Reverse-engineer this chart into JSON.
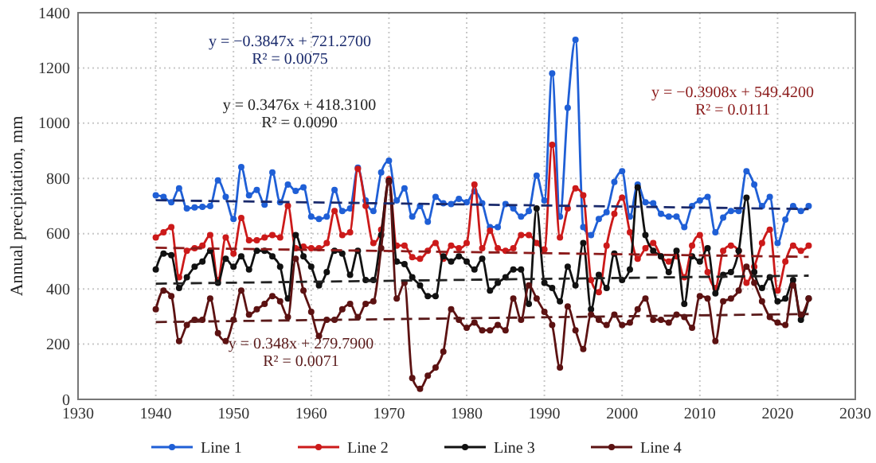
{
  "chart_data": {
    "type": "line",
    "ylabel": "Annual precipitation, mm",
    "xlim": [
      1930,
      2030
    ],
    "xticks": [
      1930,
      1940,
      1950,
      1960,
      1970,
      1980,
      1990,
      2000,
      2010,
      2020,
      2030
    ],
    "ylim": [
      0,
      1400
    ],
    "yticks": [
      0,
      200,
      400,
      600,
      800,
      1000,
      1200,
      1400
    ],
    "grid": true,
    "legend": "bottom",
    "marker": "circle",
    "x": [
      1940,
      1941,
      1942,
      1943,
      1944,
      1945,
      1946,
      1947,
      1948,
      1949,
      1950,
      1951,
      1952,
      1953,
      1954,
      1955,
      1956,
      1957,
      1958,
      1959,
      1960,
      1961,
      1962,
      1963,
      1964,
      1965,
      1966,
      1967,
      1968,
      1969,
      1970,
      1971,
      1972,
      1973,
      1974,
      1975,
      1976,
      1977,
      1978,
      1979,
      1980,
      1981,
      1982,
      1983,
      1984,
      1985,
      1986,
      1987,
      1988,
      1989,
      1990,
      1991,
      1992,
      1993,
      1994,
      1995,
      1996,
      1997,
      1998,
      1999,
      2000,
      2001,
      2002,
      2003,
      2004,
      2005,
      2006,
      2007,
      2008,
      2009,
      2010,
      2011,
      2012,
      2013,
      2014,
      2015,
      2016,
      2017,
      2018,
      2019,
      2020,
      2021,
      2022,
      2023,
      2024
    ],
    "series": [
      {
        "name": "Line 1",
        "color": "#1f5fd6",
        "values": [
          739,
          733,
          714,
          764,
          691,
          695,
          697,
          700,
          793,
          733,
          653,
          841,
          739,
          758,
          705,
          822,
          714,
          778,
          755,
          768,
          662,
          653,
          662,
          758,
          682,
          691,
          839,
          720,
          682,
          822,
          864,
          720,
          764,
          662,
          700,
          643,
          733,
          710,
          707,
          726,
          714,
          753,
          710,
          624,
          624,
          707,
          691,
          662,
          682,
          810,
          720,
          1180,
          662,
          1056,
          1302,
          624,
          595,
          653,
          678,
          787,
          826,
          662,
          778,
          714,
          710,
          672,
          662,
          662,
          624,
          700,
          720,
          733,
          605,
          658,
          682,
          682,
          826,
          778,
          700,
          733,
          566,
          651,
          700,
          682,
          700
        ]
      },
      {
        "name": "Line 2",
        "color": "#cc1a1a",
        "values": [
          586,
          605,
          624,
          442,
          538,
          547,
          557,
          595,
          432,
          586,
          528,
          657,
          576,
          576,
          586,
          595,
          586,
          701,
          547,
          553,
          547,
          547,
          566,
          682,
          595,
          605,
          835,
          701,
          566,
          614,
          797,
          557,
          557,
          515,
          509,
          538,
          566,
          509,
          557,
          547,
          566,
          778,
          547,
          611,
          547,
          538,
          547,
          595,
          595,
          566,
          543,
          922,
          586,
          691,
          764,
          739,
          432,
          388,
          557,
          672,
          730,
          605,
          509,
          547,
          566,
          518,
          499,
          518,
          442,
          557,
          595,
          461,
          403,
          538,
          557,
          538,
          422,
          480,
          566,
          614,
          394,
          499,
          557,
          538,
          557
        ]
      },
      {
        "name": "Line 3",
        "color": "#111111",
        "values": [
          470,
          528,
          522,
          403,
          442,
          480,
          499,
          538,
          422,
          509,
          480,
          518,
          470,
          538,
          538,
          518,
          480,
          365,
          595,
          518,
          480,
          413,
          461,
          538,
          528,
          451,
          538,
          432,
          432,
          595,
          791,
          499,
          490,
          442,
          413,
          374,
          374,
          518,
          499,
          518,
          499,
          470,
          509,
          394,
          422,
          442,
          470,
          470,
          346,
          691,
          422,
          403,
          355,
          480,
          413,
          566,
          326,
          451,
          403,
          528,
          432,
          470,
          768,
          595,
          538,
          518,
          461,
          538,
          346,
          518,
          499,
          547,
          384,
          451,
          461,
          538,
          730,
          461,
          403,
          442,
          355,
          365,
          432,
          288,
          365
        ]
      },
      {
        "name": "Line 4",
        "color": "#5c1212",
        "values": [
          326,
          394,
          374,
          211,
          269,
          288,
          288,
          365,
          240,
          211,
          288,
          394,
          307,
          326,
          346,
          374,
          355,
          298,
          509,
          394,
          317,
          230,
          288,
          288,
          326,
          346,
          298,
          346,
          355,
          547,
          787,
          365,
          422,
          77,
          38,
          86,
          115,
          173,
          326,
          288,
          259,
          278,
          250,
          250,
          269,
          250,
          365,
          288,
          413,
          365,
          317,
          269,
          115,
          336,
          250,
          182,
          307,
          288,
          269,
          307,
          269,
          278,
          326,
          365,
          288,
          288,
          278,
          307,
          298,
          259,
          374,
          365,
          211,
          355,
          365,
          394,
          480,
          422,
          355,
          298,
          278,
          269,
          413,
          307,
          365
        ]
      },
      {
        "type": "line",
        "color": "#1a2a6c",
        "line_style": "dashed",
        "marker": "none",
        "values": [
          721,
          null,
          null,
          null,
          null,
          null,
          null,
          null,
          null,
          null,
          null,
          null,
          null,
          null,
          null,
          null,
          null,
          null,
          null,
          null,
          null,
          null,
          null,
          null,
          null,
          null,
          null,
          null,
          null,
          null,
          null,
          null,
          null,
          null,
          null,
          null,
          null,
          null,
          null,
          null,
          null,
          null,
          null,
          null,
          null,
          null,
          null,
          null,
          null,
          null,
          null,
          null,
          null,
          null,
          null,
          null,
          null,
          null,
          null,
          null,
          null,
          null,
          null,
          null,
          null,
          null,
          null,
          null,
          null,
          null,
          null,
          null,
          null,
          null,
          null,
          null,
          null,
          null,
          null,
          null,
          null,
          null,
          null,
          null,
          689
        ]
      },
      {
        "type": "line",
        "color": "#8b1a1a",
        "line_style": "dashed",
        "marker": "none",
        "values": [
          549,
          null,
          null,
          null,
          null,
          null,
          null,
          null,
          null,
          null,
          null,
          null,
          null,
          null,
          null,
          null,
          null,
          null,
          null,
          null,
          null,
          null,
          null,
          null,
          null,
          null,
          null,
          null,
          null,
          null,
          null,
          null,
          null,
          null,
          null,
          null,
          null,
          null,
          null,
          null,
          null,
          null,
          null,
          null,
          null,
          null,
          null,
          null,
          null,
          null,
          null,
          null,
          null,
          null,
          null,
          null,
          null,
          null,
          null,
          null,
          null,
          null,
          null,
          null,
          null,
          null,
          null,
          null,
          null,
          null,
          null,
          null,
          null,
          null,
          null,
          null,
          null,
          null,
          null,
          null,
          null,
          null,
          null,
          null,
          516
        ]
      },
      {
        "type": "line",
        "color": "#222222",
        "line_style": "dashed",
        "marker": "none",
        "values": [
          419,
          null,
          null,
          null,
          null,
          null,
          null,
          null,
          null,
          null,
          null,
          null,
          null,
          null,
          null,
          null,
          null,
          null,
          null,
          null,
          null,
          null,
          null,
          null,
          null,
          null,
          null,
          null,
          null,
          null,
          null,
          null,
          null,
          null,
          null,
          null,
          null,
          null,
          null,
          null,
          null,
          null,
          null,
          null,
          null,
          null,
          null,
          null,
          null,
          null,
          null,
          null,
          null,
          null,
          null,
          null,
          null,
          null,
          null,
          null,
          null,
          null,
          null,
          null,
          null,
          null,
          null,
          null,
          null,
          null,
          null,
          null,
          null,
          null,
          null,
          null,
          null,
          null,
          null,
          null,
          null,
          null,
          null,
          null,
          448
        ]
      },
      {
        "type": "line",
        "color": "#5a1a1a",
        "line_style": "dashed",
        "marker": "none",
        "values": [
          280,
          null,
          null,
          null,
          null,
          null,
          null,
          null,
          null,
          null,
          null,
          null,
          null,
          null,
          null,
          null,
          null,
          null,
          null,
          null,
          null,
          null,
          null,
          null,
          null,
          null,
          null,
          null,
          null,
          null,
          null,
          null,
          null,
          null,
          null,
          null,
          null,
          null,
          null,
          null,
          null,
          null,
          null,
          null,
          null,
          null,
          null,
          null,
          null,
          null,
          null,
          null,
          null,
          null,
          null,
          null,
          null,
          null,
          null,
          null,
          null,
          null,
          null,
          null,
          null,
          null,
          null,
          null,
          null,
          null,
          null,
          null,
          null,
          null,
          null,
          null,
          null,
          null,
          null,
          null,
          null,
          null,
          null,
          null,
          309
        ]
      }
    ],
    "annotations": [
      "y = −0.3847x + 721.2700\nR² = 0.0075",
      "y = −0.3908x + 549.4200\nR² = 0.0111",
      "y = 0.3476x + 418.3100\nR² = 0.0090",
      "y = 0.348x + 279.7900\nR² = 0.0071"
    ]
  }
}
